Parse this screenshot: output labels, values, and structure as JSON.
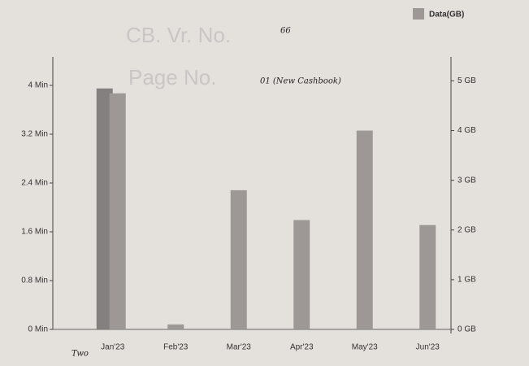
{
  "chart_data": {
    "type": "bar",
    "categories": [
      "Jan'23",
      "Feb'23",
      "Mar'23",
      "Apr'23",
      "May'23",
      "Jun'23"
    ],
    "series": [
      {
        "color": "#858080",
        "values": [
          3.95,
          null,
          null,
          null,
          null,
          null
        ]
      },
      {
        "name": "Data(GB)",
        "color": "#9d9896",
        "axis": "y2",
        "values": [
          4.75,
          0.1,
          2.8,
          2.2,
          4.0,
          2.1
        ]
      }
    ],
    "ylim": [
      0,
      4.4
    ],
    "yticks": [
      {
        "value": 0,
        "label": "0 Min"
      },
      {
        "value": 0.8,
        "label": "0.8 Min"
      },
      {
        "value": 1.6,
        "label": "1.6 Min"
      },
      {
        "value": 2.4,
        "label": "2.4 Min"
      },
      {
        "value": 3.2,
        "label": "3.2 Min"
      },
      {
        "value": 4,
        "label": "4 Min"
      }
    ],
    "y2lim": [
      0,
      5.4
    ],
    "y2ticks": [
      {
        "value": 0,
        "label": "0 GB"
      },
      {
        "value": 1,
        "label": "1 GB"
      },
      {
        "value": 2,
        "label": "2 GB"
      },
      {
        "value": 3,
        "label": "3 GB"
      },
      {
        "value": 4,
        "label": "4 GB"
      },
      {
        "value": 5,
        "label": "5 GB"
      }
    ],
    "legend": "top-right",
    "annotations": [
      "CB. Vr. No.",
      "66",
      "Page No.",
      "01 (New Cashbook)",
      "Two"
    ]
  }
}
